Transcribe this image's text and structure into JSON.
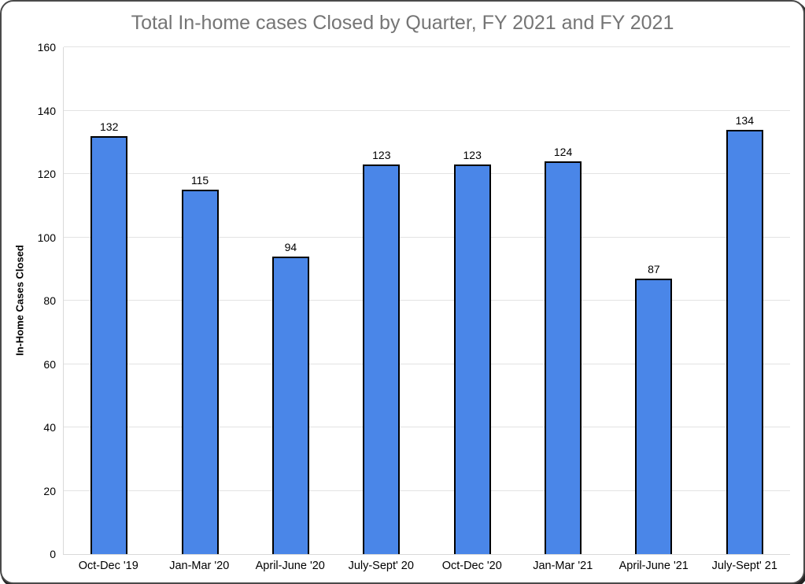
{
  "chart_data": {
    "type": "bar",
    "title": "Total In-home cases Closed by Quarter, FY 2021 and FY 2021",
    "xlabel": "",
    "ylabel": "In-Home Cases Closed",
    "categories": [
      "Oct-Dec '19",
      "Jan-Mar '20",
      "April-June '20",
      "July-Sept' 20",
      "Oct-Dec '20",
      "Jan-Mar '21",
      "April-June '21",
      "July-Sept' 21"
    ],
    "values": [
      132,
      115,
      94,
      123,
      123,
      124,
      87,
      134
    ],
    "ylim": [
      0,
      160
    ],
    "yticks": [
      0,
      20,
      40,
      60,
      80,
      100,
      120,
      140,
      160
    ],
    "grid": true,
    "legend_position": "none",
    "value_labels_shown": true,
    "colors": {
      "bar_fill": "#4a86e8",
      "bar_border": "#000000",
      "title_text": "#757575",
      "axis_text": "#000000",
      "gridline": "#e3e3e3",
      "axis_line": "#d9d9d9",
      "background": "#ffffff"
    }
  }
}
